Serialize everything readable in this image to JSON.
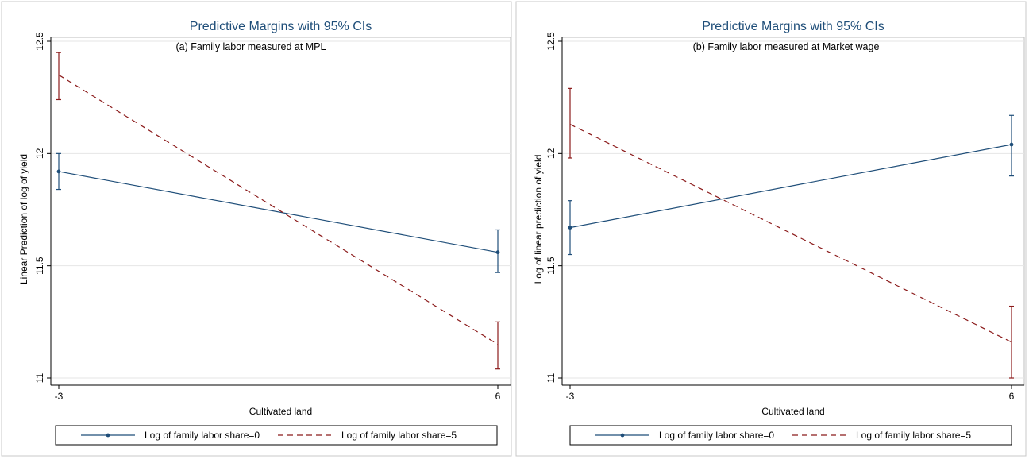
{
  "chart_data": [
    {
      "type": "line",
      "title": "Predictive Margins with 95% CIs",
      "subtitle": "(a) Family labor measured at MPL",
      "xlabel": "Cultivated land",
      "ylabel": "Linear Prediction of log of yield",
      "x": [
        -3,
        6
      ],
      "x_ticks": [
        "-3",
        "6"
      ],
      "xlim": [
        -3,
        6
      ],
      "y_ticks": [
        "11",
        "11.5",
        "12",
        "12.5"
      ],
      "ylim": [
        11,
        12.5
      ],
      "grid": true,
      "legend_position": "bottom",
      "series": [
        {
          "name": "Log of family labor share=0",
          "values": [
            11.92,
            11.56
          ],
          "ci_low": [
            11.84,
            11.47
          ],
          "ci_high": [
            12.0,
            11.66
          ],
          "color": "#1f4e79",
          "style": "solid-markers"
        },
        {
          "name": "Log of family labor share=5",
          "values": [
            12.35,
            11.15
          ],
          "ci_low": [
            12.24,
            11.04
          ],
          "ci_high": [
            12.45,
            11.25
          ],
          "color": "#8b1a1a",
          "style": "dashed"
        }
      ]
    },
    {
      "type": "line",
      "title": "Predictive Margins with 95% CIs",
      "subtitle": "(b) Family labor measured at Market wage",
      "xlabel": "Cultivated land",
      "ylabel": "Log of linear prediction of yield",
      "x": [
        -3,
        6
      ],
      "x_ticks": [
        "-3",
        "6"
      ],
      "xlim": [
        -3,
        6
      ],
      "y_ticks": [
        "11",
        "11.5",
        "12",
        "12.5"
      ],
      "ylim": [
        11,
        12.5
      ],
      "grid": true,
      "legend_position": "bottom",
      "series": [
        {
          "name": "Log of family labor share=0",
          "values": [
            11.67,
            12.04
          ],
          "ci_low": [
            11.55,
            11.9
          ],
          "ci_high": [
            11.79,
            12.17
          ],
          "color": "#1f4e79",
          "style": "solid-markers"
        },
        {
          "name": "Log of family labor share=5",
          "values": [
            12.13,
            11.16
          ],
          "ci_low": [
            11.98,
            11.0
          ],
          "ci_high": [
            12.29,
            11.32
          ],
          "color": "#8b1a1a",
          "style": "dashed"
        }
      ]
    }
  ]
}
